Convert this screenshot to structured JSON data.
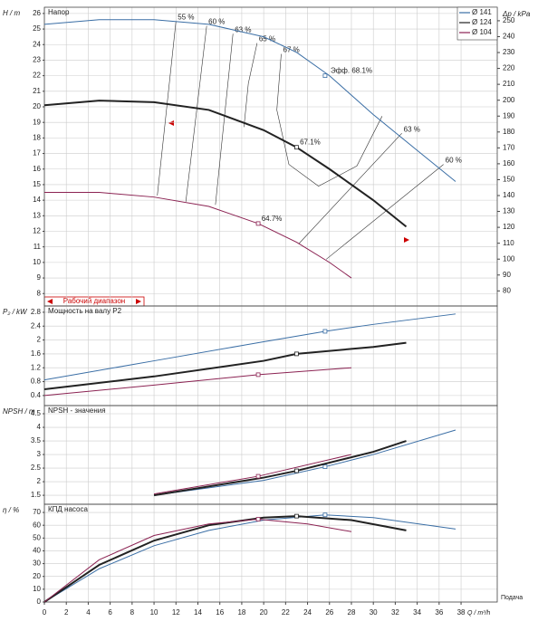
{
  "chart_data": [
    {
      "type": "line",
      "title": "Напор",
      "ylabel": "H / m",
      "y2label": "Δp / kPa",
      "xlim": [
        0,
        41.3
      ],
      "ylim": [
        7.2,
        26.4
      ],
      "yticks": [
        8,
        9,
        10,
        11,
        12,
        13,
        14,
        15,
        16,
        17,
        18,
        19,
        20,
        21,
        22,
        23,
        24,
        25,
        26
      ],
      "y2lim": [
        70.5,
        258.5
      ],
      "y2ticks": [
        80,
        90,
        100,
        110,
        120,
        130,
        140,
        150,
        160,
        170,
        180,
        190,
        200,
        210,
        220,
        230,
        240,
        250
      ],
      "grid": true,
      "legend": "upper right",
      "range_label": "Рабочий диапазон",
      "series": [
        {
          "name": "Ø 141",
          "color": "#3a6ea5",
          "x": [
            0,
            5,
            10,
            15,
            20,
            23,
            26,
            30,
            34,
            37.5
          ],
          "values": [
            25.3,
            25.6,
            25.6,
            25.3,
            24.5,
            23.5,
            22.0,
            19.5,
            17.2,
            15.2
          ],
          "duty_x": 25.6,
          "duty_y": 22.0
        },
        {
          "name": "Ø 124",
          "color": "#222222",
          "x": [
            0,
            5,
            10,
            15,
            20,
            23,
            26,
            30,
            33
          ],
          "values": [
            20.1,
            20.4,
            20.3,
            19.8,
            18.5,
            17.4,
            16.0,
            14.0,
            12.3
          ],
          "duty_x": 23,
          "duty_y": 17.4
        },
        {
          "name": "Ø 104",
          "color": "#8b2252",
          "x": [
            0,
            5,
            10,
            15,
            19.5,
            23,
            26,
            28
          ],
          "values": [
            14.5,
            14.5,
            14.2,
            13.6,
            12.5,
            11.3,
            10.0,
            9.0
          ],
          "duty_x": 19.5,
          "duty_y": 12.5
        }
      ],
      "iso_lines": [
        {
          "label": "55 %",
          "x": [
            12.0,
            10.3
          ],
          "y": [
            25.5,
            14.3
          ]
        },
        {
          "label": "60 %",
          "x": [
            14.8,
            12.9
          ],
          "y": [
            25.2,
            13.9
          ]
        },
        {
          "label": "63 %",
          "x": [
            17.2,
            15.6
          ],
          "y": [
            24.7,
            13.7
          ]
        },
        {
          "label": "65 %",
          "x": [
            19.4,
            18.6,
            18.2
          ],
          "y": [
            24.1,
            21.5,
            18.7
          ]
        },
        {
          "label": "67 %",
          "x": [
            21.6,
            21.2,
            22.3,
            25,
            28.5,
            30.8
          ],
          "y": [
            23.4,
            19.8,
            16.3,
            14.9,
            16.2,
            19.4
          ]
        },
        {
          "label": "63 %",
          "x": [
            32.6,
            23.2
          ],
          "y": [
            18.3,
            11.2
          ]
        },
        {
          "label": "60 %",
          "x": [
            36.4,
            25.7
          ],
          "y": [
            16.3,
            10.2
          ]
        }
      ],
      "annotations": [
        {
          "text": "Эфф. 68.1%",
          "x": 26.1,
          "y": 22.3
        },
        {
          "text": "67.1%",
          "x": 23.3,
          "y": 17.7
        },
        {
          "text": "64.7%",
          "x": 19.8,
          "y": 12.8
        }
      ]
    },
    {
      "type": "line",
      "title": "Мощность на валу P2",
      "ylabel": "P₂ / kW",
      "xlim": [
        0,
        41.3
      ],
      "ylim": [
        0.11,
        2.98
      ],
      "yticks": [
        0.4,
        0.8,
        1.2,
        1.6,
        2,
        2.4,
        2.8
      ],
      "grid": true,
      "series": [
        {
          "name": "Ø 141",
          "color": "#3a6ea5",
          "x": [
            0,
            10,
            20,
            25.6,
            30,
            37.5
          ],
          "values": [
            0.85,
            1.4,
            1.95,
            2.25,
            2.45,
            2.75
          ],
          "duty_x": 25.6,
          "duty_y": 2.25
        },
        {
          "name": "Ø 124",
          "color": "#222222",
          "x": [
            0,
            10,
            20,
            23,
            30,
            33
          ],
          "values": [
            0.58,
            0.95,
            1.4,
            1.6,
            1.8,
            1.92
          ],
          "duty_x": 23,
          "duty_y": 1.6
        },
        {
          "name": "Ø 104",
          "color": "#8b2252",
          "x": [
            0,
            10,
            19.5,
            28
          ],
          "values": [
            0.4,
            0.7,
            1.0,
            1.2
          ],
          "duty_x": 19.5,
          "duty_y": 1.0
        }
      ]
    },
    {
      "type": "line",
      "title": "NPSH - значения",
      "ylabel": "NPSH / m",
      "xlim": [
        0,
        41.3
      ],
      "ylim": [
        1.17,
        4.8
      ],
      "yticks": [
        1.5,
        2,
        2.5,
        3,
        3.5,
        4,
        4.5
      ],
      "grid": true,
      "series": [
        {
          "name": "Ø 141",
          "color": "#3a6ea5",
          "x": [
            10,
            20,
            25.6,
            30,
            37.5
          ],
          "values": [
            1.5,
            2.05,
            2.55,
            3.0,
            3.9
          ],
          "duty_x": 25.6,
          "duty_y": 2.55
        },
        {
          "name": "Ø 124",
          "color": "#222222",
          "x": [
            10,
            20,
            23,
            30,
            33
          ],
          "values": [
            1.5,
            2.15,
            2.4,
            3.1,
            3.5
          ],
          "duty_x": 23,
          "duty_y": 2.4
        },
        {
          "name": "Ø 104",
          "color": "#8b2252",
          "x": [
            10,
            19.5,
            28
          ],
          "values": [
            1.55,
            2.2,
            3.0
          ],
          "duty_x": 19.5,
          "duty_y": 2.2
        }
      ]
    },
    {
      "type": "line",
      "title": "КПД насоса",
      "ylabel": "η / %",
      "xlabel": "Q / m³/h",
      "xlabel2": "Подача",
      "xlim": [
        0,
        41.3
      ],
      "xticks": [
        0,
        2,
        4,
        6,
        8,
        10,
        12,
        14,
        16,
        18,
        20,
        22,
        24,
        26,
        28,
        30,
        32,
        34,
        36,
        38
      ],
      "ylim": [
        0,
        76.4
      ],
      "yticks": [
        0,
        10,
        20,
        30,
        40,
        50,
        60,
        70
      ],
      "grid": true,
      "series": [
        {
          "name": "Ø 141",
          "color": "#3a6ea5",
          "x": [
            0,
            5,
            10,
            15,
            20,
            25.6,
            30,
            37.5
          ],
          "values": [
            0,
            26,
            44,
            56,
            64,
            68.1,
            66,
            57
          ],
          "duty_x": 25.6,
          "duty_y": 68.1
        },
        {
          "name": "Ø 124",
          "color": "#222222",
          "x": [
            0,
            5,
            10,
            15,
            20,
            23,
            28,
            33
          ],
          "values": [
            0,
            29,
            48,
            60,
            66,
            67.1,
            64,
            56
          ],
          "duty_x": 23,
          "duty_y": 67.1
        },
        {
          "name": "Ø 104",
          "color": "#8b2252",
          "x": [
            0,
            5,
            10,
            15,
            19.5,
            24,
            28
          ],
          "values": [
            0,
            33,
            52,
            61,
            64.7,
            61,
            55
          ],
          "duty_x": 19.5,
          "duty_y": 64.7
        }
      ]
    }
  ]
}
